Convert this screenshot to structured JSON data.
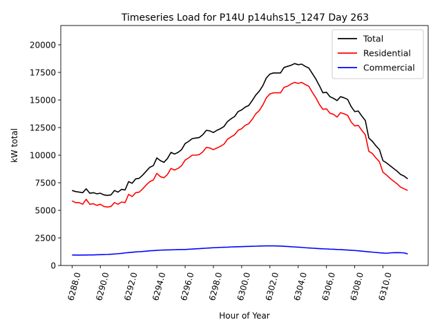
{
  "chart_data": {
    "type": "line",
    "title": "Timeseries Load for P14U p14uhs15_1247  Day 263",
    "xlabel": "Hour of Year",
    "ylabel": "kW total",
    "xlim": [
      6287.2,
      6313.2
    ],
    "ylim": [
      0,
      21750
    ],
    "x_ticks": [
      6288,
      6290,
      6292,
      6294,
      6296,
      6298,
      6300,
      6302,
      6304,
      6306,
      6308,
      6310
    ],
    "x_tick_labels": [
      "6288.0",
      "6290.0",
      "6292.0",
      "6294.0",
      "6296.0",
      "6298.0",
      "6300.0",
      "6302.0",
      "6304.0",
      "6306.0",
      "6308.0",
      "6310.0"
    ],
    "y_ticks": [
      0,
      2500,
      5000,
      7500,
      10000,
      12500,
      15000,
      17500,
      20000
    ],
    "y_tick_labels": [
      "0",
      "2500",
      "5000",
      "7500",
      "10000",
      "12500",
      "15000",
      "17500",
      "20000"
    ],
    "grid": false,
    "legend_position": "top-right",
    "x": [
      6288.0,
      6288.25,
      6288.5,
      6288.75,
      6289.0,
      6289.25,
      6289.5,
      6289.75,
      6290.0,
      6290.25,
      6290.5,
      6290.75,
      6291.0,
      6291.25,
      6291.5,
      6291.75,
      6292.0,
      6292.25,
      6292.5,
      6292.75,
      6293.0,
      6293.25,
      6293.5,
      6293.75,
      6294.0,
      6294.25,
      6294.5,
      6294.75,
      6295.0,
      6295.25,
      6295.5,
      6295.75,
      6296.0,
      6296.25,
      6296.5,
      6296.75,
      6297.0,
      6297.25,
      6297.5,
      6297.75,
      6298.0,
      6298.25,
      6298.5,
      6298.75,
      6299.0,
      6299.25,
      6299.5,
      6299.75,
      6300.0,
      6300.25,
      6300.5,
      6300.75,
      6301.0,
      6301.25,
      6301.5,
      6301.75,
      6302.0,
      6302.25,
      6302.5,
      6302.75,
      6303.0,
      6303.25,
      6303.5,
      6303.75,
      6304.0,
      6304.25,
      6304.5,
      6304.75,
      6305.0,
      6305.25,
      6305.5,
      6305.75,
      6306.0,
      6306.25,
      6306.5,
      6306.75,
      6307.0,
      6307.25,
      6307.5,
      6307.75,
      6308.0,
      6308.25,
      6308.5,
      6308.75,
      6309.0,
      6309.25,
      6309.5,
      6309.75,
      6310.0,
      6310.25,
      6310.5,
      6310.75,
      6311.0,
      6311.25,
      6311.5,
      6311.75
    ],
    "series": [
      {
        "name": "Total",
        "color": "#000000",
        "values": [
          6800,
          6700,
          6650,
          6600,
          6950,
          6550,
          6600,
          6500,
          6550,
          6400,
          6350,
          6400,
          6800,
          6650,
          6900,
          6850,
          7600,
          7450,
          7850,
          7900,
          8200,
          8550,
          8900,
          9050,
          9750,
          9500,
          9350,
          9700,
          10250,
          10100,
          10250,
          10500,
          11050,
          11250,
          11500,
          11550,
          11600,
          11850,
          12250,
          12200,
          12050,
          12250,
          12400,
          12600,
          13050,
          13300,
          13500,
          13950,
          14100,
          14350,
          14500,
          14950,
          15450,
          15800,
          16300,
          17000,
          17350,
          17450,
          17450,
          17450,
          17950,
          18050,
          18150,
          18300,
          18200,
          18250,
          18050,
          17900,
          17400,
          16900,
          16300,
          15650,
          15700,
          15300,
          15150,
          14950,
          15300,
          15200,
          15050,
          14400,
          13950,
          14000,
          13550,
          13150,
          11550,
          11250,
          10850,
          10500,
          9500,
          9300,
          9050,
          8800,
          8550,
          8250,
          8100,
          7850
        ]
      },
      {
        "name": "Residential",
        "color": "#ff0000",
        "values": [
          5850,
          5700,
          5700,
          5550,
          6000,
          5550,
          5600,
          5450,
          5550,
          5350,
          5300,
          5350,
          5700,
          5550,
          5750,
          5700,
          6450,
          6250,
          6600,
          6650,
          6950,
          7300,
          7600,
          7750,
          8350,
          8050,
          7950,
          8250,
          8800,
          8650,
          8800,
          9050,
          9550,
          9750,
          10000,
          10000,
          10050,
          10300,
          10700,
          10650,
          10500,
          10650,
          10800,
          11000,
          11450,
          11650,
          11850,
          12250,
          12400,
          12700,
          12850,
          13250,
          13750,
          14050,
          14550,
          15200,
          15550,
          15650,
          15650,
          15650,
          16150,
          16250,
          16450,
          16600,
          16500,
          16600,
          16400,
          16250,
          15700,
          15200,
          14600,
          14150,
          14200,
          13800,
          13700,
          13450,
          13850,
          13750,
          13600,
          13000,
          12650,
          12700,
          12250,
          11850,
          10350,
          10150,
          9750,
          9400,
          8450,
          8200,
          7900,
          7650,
          7400,
          7100,
          6950,
          6800
        ]
      },
      {
        "name": "Commercial",
        "color": "#0000ff",
        "values": [
          950,
          950,
          940,
          950,
          950,
          960,
          960,
          970,
          980,
          990,
          1000,
          1020,
          1040,
          1070,
          1100,
          1140,
          1170,
          1200,
          1230,
          1250,
          1270,
          1300,
          1330,
          1350,
          1370,
          1390,
          1400,
          1410,
          1420,
          1430,
          1440,
          1450,
          1450,
          1470,
          1490,
          1510,
          1530,
          1550,
          1570,
          1590,
          1610,
          1620,
          1640,
          1650,
          1660,
          1680,
          1690,
          1700,
          1710,
          1720,
          1730,
          1740,
          1750,
          1760,
          1770,
          1780,
          1780,
          1780,
          1770,
          1760,
          1740,
          1720,
          1700,
          1680,
          1660,
          1640,
          1610,
          1590,
          1570,
          1550,
          1530,
          1510,
          1500,
          1480,
          1470,
          1450,
          1440,
          1420,
          1400,
          1380,
          1360,
          1330,
          1300,
          1270,
          1240,
          1210,
          1180,
          1150,
          1130,
          1110,
          1140,
          1160,
          1170,
          1160,
          1140,
          1050
        ]
      }
    ]
  }
}
